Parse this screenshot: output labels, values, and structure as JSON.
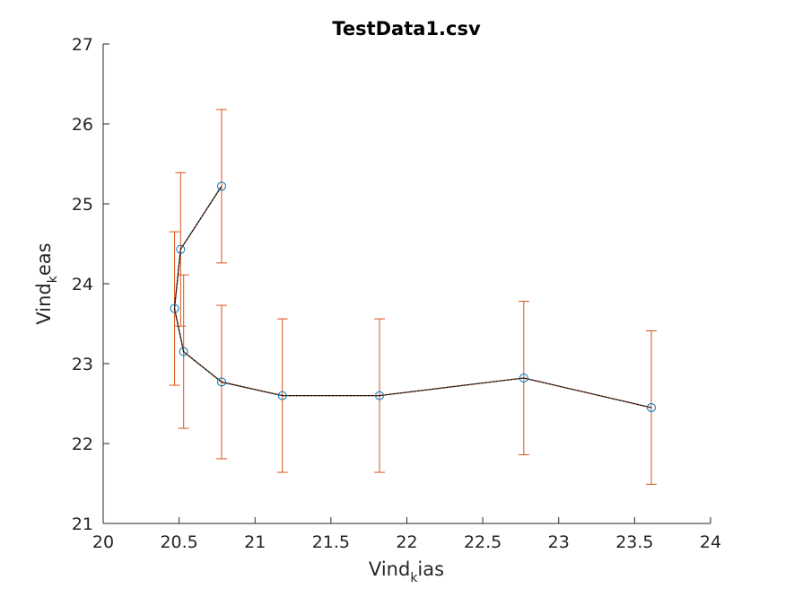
{
  "chart_data": {
    "type": "scatter",
    "title": "TestData1.csv",
    "xlabel": {
      "main": "Vind",
      "sub": "k",
      "rest": "ias"
    },
    "ylabel": {
      "main": "Vind",
      "sub": "k",
      "rest": "eas"
    },
    "xlim": [
      20,
      24
    ],
    "ylim": [
      21,
      27
    ],
    "xticks": [
      20,
      20.5,
      21,
      21.5,
      22,
      22.5,
      23,
      23.5,
      24
    ],
    "xtick_labels": [
      "20",
      "20.5",
      "21",
      "21.5",
      "22",
      "22.5",
      "23",
      "23.5",
      "24"
    ],
    "yticks": [
      21,
      22,
      23,
      24,
      25,
      26,
      27
    ],
    "ytick_labels": [
      "21",
      "22",
      "23",
      "24",
      "25",
      "26",
      "27"
    ],
    "grid": false,
    "legend": "none",
    "series": [
      {
        "kind": "line-with-markers",
        "x": [
          20.78,
          20.51,
          20.47,
          20.53,
          20.78,
          21.18,
          21.82,
          22.77,
          23.61
        ],
        "y": [
          25.22,
          24.43,
          23.69,
          23.15,
          22.77,
          22.6,
          22.6,
          22.82,
          22.45
        ],
        "color": "#000000",
        "marker": "circle",
        "marker_color": "#0072bd"
      },
      {
        "kind": "errorbar",
        "x": [
          20.78,
          20.51,
          20.47,
          20.53,
          20.78,
          21.18,
          21.82,
          22.77,
          23.61
        ],
        "y": [
          25.22,
          24.43,
          23.69,
          23.15,
          22.77,
          22.6,
          22.6,
          22.82,
          22.45
        ],
        "error": [
          0.96,
          0.96,
          0.96,
          0.96,
          0.96,
          0.96,
          0.96,
          0.96,
          0.96
        ],
        "color": "#d95319"
      }
    ]
  }
}
